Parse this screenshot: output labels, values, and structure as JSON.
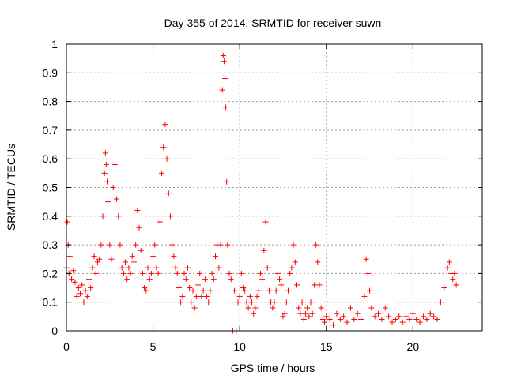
{
  "chart_data": {
    "type": "scatter",
    "title": "Day 355 of 2014, SRMTID for receiver suwn",
    "xlabel": "GPS time / hours",
    "ylabel": "SRMTID / TECUs",
    "xlim": [
      0,
      24
    ],
    "ylim": [
      0,
      1
    ],
    "xticks": [
      0,
      5,
      10,
      15,
      20
    ],
    "xtick_labels": [
      "0",
      "5",
      "10",
      "15",
      "20"
    ],
    "yticks": [
      0,
      0.1,
      0.2,
      0.3,
      0.4,
      0.5,
      0.6,
      0.7,
      0.8,
      0.9,
      1
    ],
    "ytick_labels": [
      "0",
      "0.1",
      "0.2",
      "0.3",
      "0.4",
      "0.5",
      "0.6",
      "0.7",
      "0.8",
      "0.9",
      "1"
    ],
    "grid": true,
    "marker": "plus",
    "color": "#ff0000",
    "series": [
      {
        "name": "SRMTID",
        "x": [
          0.0,
          0.05,
          0.1,
          0.15,
          0.2,
          0.3,
          0.4,
          0.5,
          0.6,
          0.7,
          0.8,
          0.9,
          1.0,
          1.1,
          1.2,
          1.3,
          1.4,
          1.5,
          1.6,
          1.7,
          1.8,
          1.9,
          2.0,
          2.1,
          2.2,
          2.25,
          2.3,
          2.35,
          2.4,
          2.5,
          2.6,
          2.7,
          2.8,
          2.9,
          3.0,
          3.1,
          3.2,
          3.3,
          3.4,
          3.5,
          3.6,
          3.7,
          3.8,
          3.9,
          4.0,
          4.1,
          4.2,
          4.3,
          4.4,
          4.5,
          4.6,
          4.7,
          4.8,
          4.9,
          5.0,
          5.1,
          5.2,
          5.3,
          5.4,
          5.5,
          5.6,
          5.7,
          5.8,
          5.9,
          6.0,
          6.1,
          6.2,
          6.3,
          6.4,
          6.5,
          6.6,
          6.7,
          6.8,
          6.9,
          7.0,
          7.1,
          7.2,
          7.3,
          7.4,
          7.5,
          7.6,
          7.7,
          7.8,
          7.9,
          8.0,
          8.1,
          8.2,
          8.3,
          8.4,
          8.5,
          8.6,
          8.7,
          8.8,
          8.9,
          9.0,
          9.05,
          9.1,
          9.15,
          9.2,
          9.25,
          9.3,
          9.4,
          9.5,
          9.6,
          9.7,
          9.8,
          9.9,
          10.0,
          10.1,
          10.2,
          10.3,
          10.4,
          10.5,
          10.6,
          10.7,
          10.8,
          10.9,
          11.0,
          11.1,
          11.2,
          11.3,
          11.4,
          11.5,
          11.6,
          11.7,
          11.8,
          11.9,
          12.0,
          12.1,
          12.2,
          12.3,
          12.4,
          12.5,
          12.6,
          12.7,
          12.8,
          12.9,
          13.0,
          13.1,
          13.2,
          13.3,
          13.4,
          13.5,
          13.6,
          13.7,
          13.8,
          13.9,
          14.0,
          14.1,
          14.2,
          14.3,
          14.4,
          14.5,
          14.6,
          14.7,
          14.8,
          14.9,
          15.0,
          15.2,
          15.4,
          15.6,
          15.8,
          16.0,
          16.2,
          16.4,
          16.6,
          16.8,
          17.0,
          17.2,
          17.3,
          17.4,
          17.5,
          17.6,
          17.8,
          18.0,
          18.2,
          18.4,
          18.6,
          18.8,
          19.0,
          19.2,
          19.4,
          19.6,
          19.8,
          20.0,
          20.2,
          20.4,
          20.6,
          20.8,
          21.0,
          21.2,
          21.4,
          21.6,
          21.8,
          22.0,
          22.1,
          22.2,
          22.3,
          22.4,
          22.5
        ],
        "y": [
          0.22,
          0.38,
          0.3,
          0.2,
          0.26,
          0.18,
          0.21,
          0.17,
          0.12,
          0.15,
          0.13,
          0.16,
          0.1,
          0.14,
          0.12,
          0.18,
          0.15,
          0.22,
          0.26,
          0.2,
          0.24,
          0.25,
          0.3,
          0.4,
          0.55,
          0.62,
          0.58,
          0.52,
          0.45,
          0.3,
          0.25,
          0.5,
          0.58,
          0.46,
          0.4,
          0.3,
          0.22,
          0.2,
          0.24,
          0.18,
          0.22,
          0.2,
          0.26,
          0.24,
          0.3,
          0.42,
          0.36,
          0.28,
          0.2,
          0.15,
          0.14,
          0.22,
          0.18,
          0.2,
          0.26,
          0.3,
          0.22,
          0.2,
          0.38,
          0.55,
          0.64,
          0.72,
          0.6,
          0.48,
          0.4,
          0.3,
          0.26,
          0.22,
          0.2,
          0.15,
          0.1,
          0.12,
          0.2,
          0.18,
          0.22,
          0.15,
          0.1,
          0.14,
          0.08,
          0.12,
          0.16,
          0.2,
          0.12,
          0.14,
          0.18,
          0.12,
          0.1,
          0.14,
          0.2,
          0.18,
          0.26,
          0.3,
          0.22,
          0.3,
          0.84,
          0.96,
          0.94,
          0.88,
          0.78,
          0.52,
          0.3,
          0.2,
          0.18,
          0.0,
          0.14,
          0.0,
          0.1,
          0.12,
          0.2,
          0.15,
          0.14,
          0.1,
          0.08,
          0.12,
          0.1,
          0.06,
          0.08,
          0.12,
          0.14,
          0.2,
          0.18,
          0.28,
          0.38,
          0.22,
          0.14,
          0.1,
          0.08,
          0.1,
          0.14,
          0.2,
          0.18,
          0.16,
          0.05,
          0.06,
          0.1,
          0.14,
          0.2,
          0.22,
          0.3,
          0.24,
          0.16,
          0.08,
          0.06,
          0.1,
          0.04,
          0.06,
          0.08,
          0.05,
          0.1,
          0.06,
          0.16,
          0.3,
          0.24,
          0.16,
          0.08,
          0.04,
          0.03,
          0.05,
          0.04,
          0.02,
          0.06,
          0.04,
          0.05,
          0.03,
          0.08,
          0.04,
          0.06,
          0.04,
          0.12,
          0.25,
          0.2,
          0.14,
          0.08,
          0.05,
          0.06,
          0.04,
          0.08,
          0.05,
          0.03,
          0.04,
          0.05,
          0.03,
          0.05,
          0.04,
          0.06,
          0.04,
          0.03,
          0.05,
          0.04,
          0.06,
          0.05,
          0.04,
          0.1,
          0.15,
          0.22,
          0.24,
          0.2,
          0.18,
          0.2,
          0.16
        ]
      }
    ]
  }
}
